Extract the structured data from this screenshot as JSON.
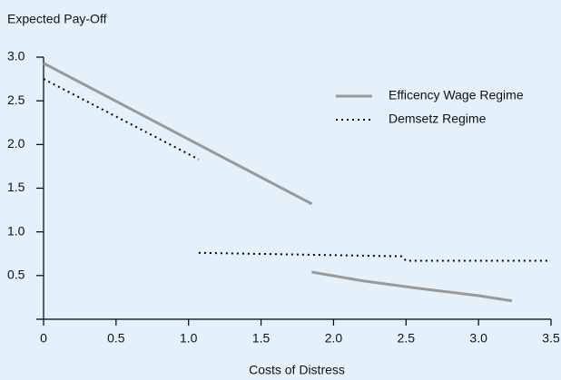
{
  "chart_data": {
    "type": "line",
    "y_label": "Expected Pay-Off",
    "x_label": "Costs of Distress",
    "xlim": [
      0,
      3.5
    ],
    "xticks": [
      0,
      0.5,
      {
        "value": 1,
        "label": "1.0"
      },
      1.5,
      {
        "value": 2,
        "label": "2.0"
      },
      2.5,
      {
        "value": 3,
        "label": "3.0"
      },
      3.5
    ],
    "ylim": [
      0,
      3
    ],
    "yticks": [
      0.5,
      {
        "value": 1,
        "label": "1.0"
      },
      1.5,
      {
        "value": 2,
        "label": "2.0"
      },
      2.5,
      {
        "value": 3,
        "label": "3.0"
      }
    ],
    "legend": "upper right",
    "series": [
      {
        "name": "Efficency Wage Regime",
        "color": "#999999",
        "style": "solid",
        "x": [
          0,
          1.85,
          1.85,
          1.85,
          2.2,
          2.6,
          3.0,
          3.23
        ],
        "values": [
          2.93,
          1.32,
          null,
          0.54,
          0.44,
          0.35,
          0.27,
          0.21
        ]
      },
      {
        "name": "Demsetz Regime",
        "color": "#000000",
        "style": "dotted",
        "x": [
          0,
          1.07,
          1.07,
          1.07,
          2.47,
          2.5,
          3.5
        ],
        "values": [
          2.75,
          1.83,
          null,
          0.76,
          0.72,
          0.67,
          0.67
        ]
      }
    ]
  }
}
